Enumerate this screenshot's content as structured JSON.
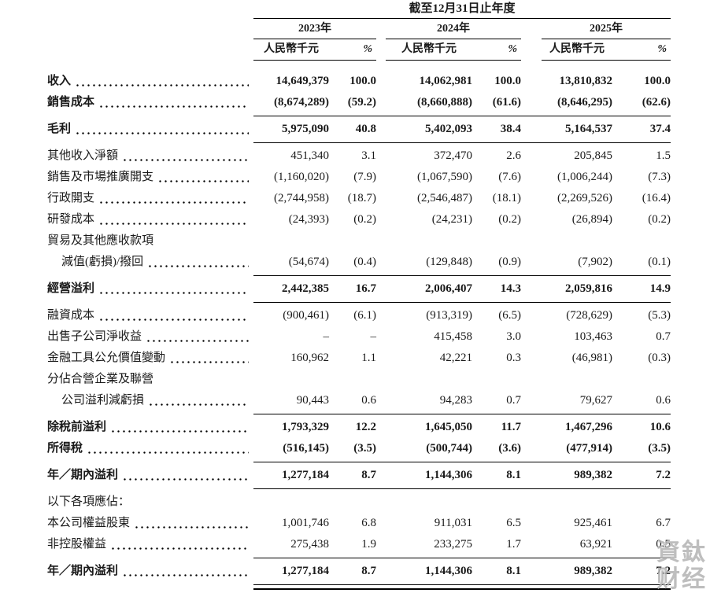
{
  "table": {
    "period_header": "截至12月31日止年度",
    "year_groups": [
      {
        "year": "2023年",
        "unit": "人民幣千元",
        "pct": "%"
      },
      {
        "year": "2024年",
        "unit": "人民幣千元",
        "pct": "%"
      },
      {
        "year": "2025年",
        "unit": "人民幣千元",
        "pct": "%"
      }
    ],
    "rows": [
      {
        "label": "收入",
        "bold": true,
        "dots": true,
        "vals": [
          "14,649,379",
          "100.0",
          "14,062,981",
          "100.0",
          "13,810,832",
          "100.0"
        ]
      },
      {
        "label": "銷售成本",
        "bold": true,
        "dots": true,
        "vals": [
          "(8,674,289)",
          "(59.2)",
          "(8,660,888)",
          "(61.6)",
          "(8,646,295)",
          "(62.6)"
        ]
      },
      {
        "label": "毛利",
        "bold": true,
        "dots": true,
        "line_above": true,
        "line_below": true,
        "vals": [
          "5,975,090",
          "40.8",
          "5,402,093",
          "38.4",
          "5,164,537",
          "37.4"
        ]
      },
      {
        "label": "其他收入淨額",
        "dots": true,
        "vals": [
          "451,340",
          "3.1",
          "372,470",
          "2.6",
          "205,845",
          "1.5"
        ]
      },
      {
        "label": "銷售及市場推廣開支",
        "dots": true,
        "vals": [
          "(1,160,020)",
          "(7.9)",
          "(1,067,590)",
          "(7.6)",
          "(1,006,244)",
          "(7.3)"
        ]
      },
      {
        "label": "行政開支",
        "dots": true,
        "vals": [
          "(2,744,958)",
          "(18.7)",
          "(2,546,487)",
          "(18.1)",
          "(2,269,526)",
          "(16.4)"
        ]
      },
      {
        "label": "研發成本",
        "dots": true,
        "vals": [
          "(24,393)",
          "(0.2)",
          "(24,231)",
          "(0.2)",
          "(26,894)",
          "(0.2)"
        ]
      },
      {
        "label": "貿易及其他應收款項"
      },
      {
        "label": "減值(虧損)/撥回",
        "indent": true,
        "dots": true,
        "vals": [
          "(54,674)",
          "(0.4)",
          "(129,848)",
          "(0.9)",
          "(7,902)",
          "(0.1)"
        ]
      },
      {
        "label": "經營溢利",
        "bold": true,
        "dots": true,
        "line_above": true,
        "line_below": true,
        "vals": [
          "2,442,385",
          "16.7",
          "2,006,407",
          "14.3",
          "2,059,816",
          "14.9"
        ]
      },
      {
        "label": "融資成本",
        "dots": true,
        "vals": [
          "(900,461)",
          "(6.1)",
          "(913,319)",
          "(6.5)",
          "(728,629)",
          "(5.3)"
        ]
      },
      {
        "label": "出售子公司淨收益",
        "dots": true,
        "vals": [
          "–",
          "–",
          "415,458",
          "3.0",
          "103,463",
          "0.7"
        ]
      },
      {
        "label": "金融工具公允價值變動",
        "dots": true,
        "vals": [
          "160,962",
          "1.1",
          "42,221",
          "0.3",
          "(46,981)",
          "(0.3)"
        ]
      },
      {
        "label": "分佔合營企業及聯營"
      },
      {
        "label": "公司溢利減虧損",
        "indent": true,
        "dots": true,
        "vals": [
          "90,443",
          "0.6",
          "94,283",
          "0.7",
          "79,627",
          "0.6"
        ]
      },
      {
        "label": "除稅前溢利",
        "bold": true,
        "dots": true,
        "line_above": true,
        "vals": [
          "1,793,329",
          "12.2",
          "1,645,050",
          "11.7",
          "1,467,296",
          "10.6"
        ]
      },
      {
        "label": "所得稅",
        "bold": true,
        "dots": true,
        "vals": [
          "(516,145)",
          "(3.5)",
          "(500,744)",
          "(3.6)",
          "(477,914)",
          "(3.5)"
        ]
      },
      {
        "label": "年／期內溢利",
        "bold": true,
        "dots": true,
        "line_above": true,
        "line_below": true,
        "vals": [
          "1,277,184",
          "8.7",
          "1,144,306",
          "8.1",
          "989,382",
          "7.2"
        ]
      },
      {
        "label": "以下各項應佔："
      },
      {
        "label": "本公司權益股東",
        "dots": true,
        "vals": [
          "1,001,746",
          "6.8",
          "911,031",
          "6.5",
          "925,461",
          "6.7"
        ]
      },
      {
        "label": "非控股權益",
        "dots": true,
        "vals": [
          "275,438",
          "1.9",
          "233,275",
          "1.7",
          "63,921",
          "0.5"
        ]
      },
      {
        "label": "年／期內溢利",
        "bold": true,
        "dots": true,
        "line_above": true,
        "double_below": true,
        "vals": [
          "1,277,184",
          "8.7",
          "1,144,306",
          "8.1",
          "989,382",
          "7.2"
        ]
      }
    ]
  },
  "watermark": {
    "text": "資鈦财经"
  }
}
